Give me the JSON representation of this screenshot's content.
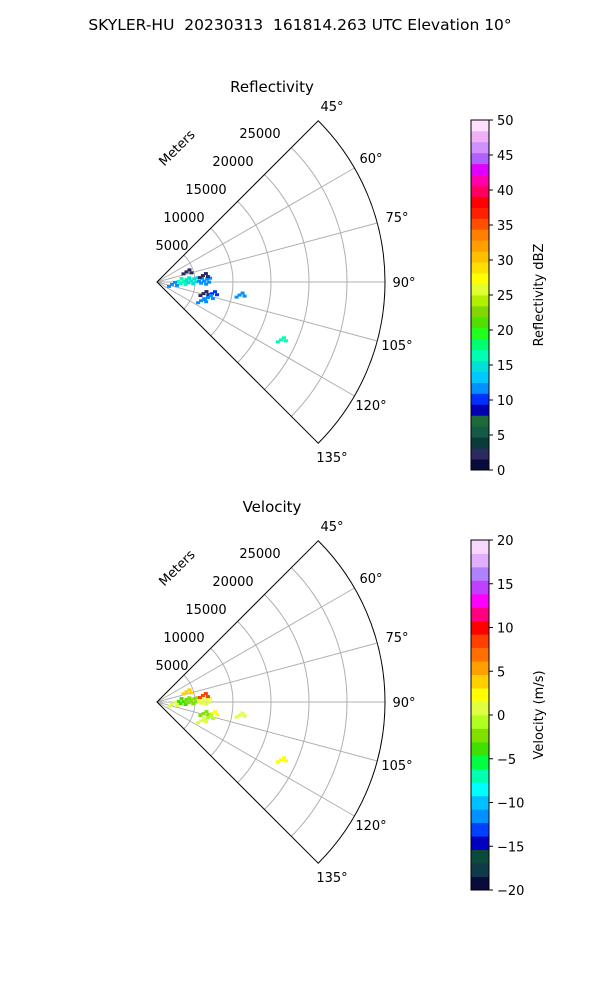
{
  "title": "SKYLER-HU  20230313  161814.263 UTC Elevation 10°",
  "chart_data": [
    {
      "type": "polar-ppi",
      "title": "Reflectivity",
      "radial_label": "Meters",
      "r_ticks": [
        "5000",
        "10000",
        "15000",
        "20000",
        "25000"
      ],
      "theta_ticks": [
        "45°",
        "60°",
        "75°",
        "90°",
        "105°",
        "120°",
        "135°"
      ],
      "theta_range": [
        45,
        135
      ],
      "r_range": [
        0,
        30000
      ],
      "colorbar": {
        "label": "Reflectivity dBZ",
        "range": [
          0,
          50
        ],
        "ticks": [
          "0",
          "5",
          "10",
          "15",
          "20",
          "25",
          "30",
          "35",
          "40",
          "45",
          "50"
        ]
      },
      "echoes": [
        {
          "range_m": 3500,
          "az": 89,
          "value": 16
        },
        {
          "range_m": 4500,
          "az": 88,
          "value": 15
        },
        {
          "range_m": 2000,
          "az": 99,
          "value": 12
        },
        {
          "range_m": 6200,
          "az": 89,
          "value": 11
        },
        {
          "range_m": 6100,
          "az": 82,
          "value": 3
        },
        {
          "range_m": 7400,
          "az": 102,
          "value": 10
        },
        {
          "range_m": 6300,
          "az": 104,
          "value": 3
        },
        {
          "range_m": 7000,
          "az": 107,
          "value": 11
        },
        {
          "range_m": 11000,
          "az": 99,
          "value": 11
        },
        {
          "range_m": 6300,
          "az": 113,
          "value": 11
        },
        {
          "range_m": 4100,
          "az": 71,
          "value": 2
        },
        {
          "range_m": 18000,
          "az": 115,
          "value": 17
        }
      ]
    },
    {
      "type": "polar-ppi",
      "title": "Velocity",
      "radial_label": "Meters",
      "r_ticks": [
        "5000",
        "10000",
        "15000",
        "20000",
        "25000"
      ],
      "theta_ticks": [
        "45°",
        "60°",
        "75°",
        "90°",
        "105°",
        "120°",
        "135°"
      ],
      "theta_range": [
        45,
        135
      ],
      "r_range": [
        0,
        30000
      ],
      "colorbar": {
        "label": "Velocity (m/s)",
        "range": [
          -20,
          20
        ],
        "ticks": [
          "−20",
          "−15",
          "−10",
          "−5",
          "0",
          "5",
          "10",
          "15",
          "20"
        ]
      },
      "echoes": [
        {
          "range_m": 3500,
          "az": 89,
          "value": -4
        },
        {
          "range_m": 4500,
          "az": 88,
          "value": -3
        },
        {
          "range_m": 2000,
          "az": 99,
          "value": 0
        },
        {
          "range_m": 6200,
          "az": 89,
          "value": 1
        },
        {
          "range_m": 6100,
          "az": 82,
          "value": 8
        },
        {
          "range_m": 7400,
          "az": 102,
          "value": 2
        },
        {
          "range_m": 6300,
          "az": 104,
          "value": -3
        },
        {
          "range_m": 7000,
          "az": 107,
          "value": -1
        },
        {
          "range_m": 11000,
          "az": 99,
          "value": 1
        },
        {
          "range_m": 6300,
          "az": 113,
          "value": 1
        },
        {
          "range_m": 4100,
          "az": 71,
          "value": 4
        },
        {
          "range_m": 18000,
          "az": 115,
          "value": 2
        }
      ]
    }
  ]
}
